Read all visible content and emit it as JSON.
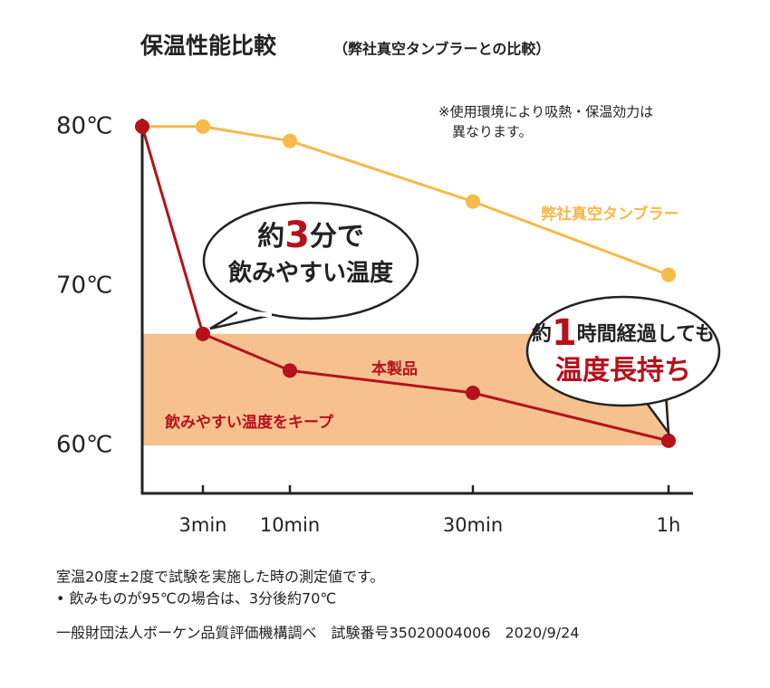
{
  "chart_data": {
    "type": "line",
    "title": "保温性能比較",
    "subtitle": "（弊社真空タンブラーとの比較）",
    "note": [
      "※使用環境により吸熱・保温効力は",
      "異なります。"
    ],
    "categories": [
      null,
      "3min",
      "10min",
      "30min",
      "1h"
    ],
    "ylim": [
      57,
      80.5
    ],
    "yticks": [
      {
        "value": 60,
        "label": "60℃"
      },
      {
        "value": 70,
        "label": "70℃"
      },
      {
        "value": 80,
        "label": "80℃"
      }
    ],
    "band": {
      "range": [
        60,
        67
      ],
      "label": "飲みやすい温度をキープ",
      "color": "#f6c18f"
    },
    "series": [
      {
        "name": "弊社真空タンブラー",
        "color": "#f6b94a",
        "values": [
          80,
          80,
          79.1,
          75.3,
          70.7
        ]
      },
      {
        "name": "本製品",
        "color": "#b5121b",
        "values": [
          80,
          67,
          64.7,
          63.3,
          60.3
        ]
      }
    ],
    "callouts": [
      {
        "lines": [
          [
            {
              "text": "約"
            },
            {
              "text": "3",
              "emphasis": true
            },
            {
              "text": "分で"
            }
          ],
          [
            {
              "text": "飲みやすい温度"
            }
          ]
        ]
      },
      {
        "lines": [
          [
            {
              "text": "約"
            },
            {
              "text": "1",
              "emphasis": true
            },
            {
              "text": "時間経過しても"
            }
          ],
          [
            {
              "text": "温度長持ち",
              "emphasis": true
            }
          ]
        ]
      }
    ],
    "footnotes": [
      "室温20度±2度で試験を実施した時の測定値です。",
      "• 飲みものが95℃の場合は、3分後約70℃",
      "一般財団法人ボーケン品質評価機構調べ　試験番号35020004006　2020/9/24"
    ]
  }
}
